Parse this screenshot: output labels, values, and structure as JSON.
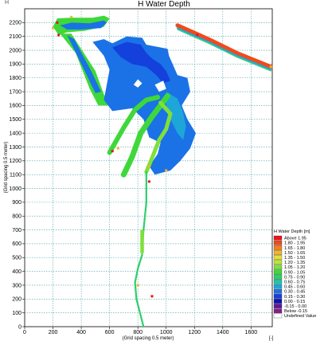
{
  "corner_label": "H",
  "chart_data": {
    "type": "heatmap",
    "title": "H Water Depth",
    "xlabel": "(Grid spacing 0.5 meter)",
    "ylabel": "(Grid spacing 0.5 meter)",
    "x_unit_label": "[-]",
    "xlim": [
      0,
      1750
    ],
    "ylim": [
      0,
      2300
    ],
    "x_ticks": [
      0,
      200,
      400,
      600,
      800,
      1000,
      1200,
      1400,
      1600
    ],
    "y_ticks": [
      0,
      100,
      200,
      300,
      400,
      500,
      600,
      700,
      800,
      900,
      1000,
      1100,
      1200,
      1300,
      1400,
      1500,
      1600,
      1700,
      1800,
      1900,
      2000,
      2100,
      2200
    ],
    "grid": true,
    "legend": {
      "title": "H Water Depth [m]",
      "position": "right",
      "entries": [
        {
          "label": "Above  1.95",
          "color": "#e8141c"
        },
        {
          "label": "1.80 - 1.95",
          "color": "#f04a1c"
        },
        {
          "label": "1.65 - 1.80",
          "color": "#f5801f"
        },
        {
          "label": "1.50 - 1.65",
          "color": "#f2b52a"
        },
        {
          "label": "1.35 - 1.50",
          "color": "#e6df3a"
        },
        {
          "label": "1.20 - 1.35",
          "color": "#b8e63a"
        },
        {
          "label": "1.05 - 1.20",
          "color": "#7fe03a"
        },
        {
          "label": "0.90 - 1.05",
          "color": "#3ed83a"
        },
        {
          "label": "0.75 - 0.90",
          "color": "#2ccf6a"
        },
        {
          "label": "0.60 - 0.75",
          "color": "#22c5a4"
        },
        {
          "label": "0.45 - 0.60",
          "color": "#1ea6d8"
        },
        {
          "label": "0.30 - 0.45",
          "color": "#1a72e6"
        },
        {
          "label": "0.15 - 0.30",
          "color": "#1440dc"
        },
        {
          "label": "0.00 - 0.15",
          "color": "#1010b4"
        },
        {
          "label": "-0.15 - 0.00",
          "color": "#5a1a9a"
        },
        {
          "label": "Below  -0.15",
          "color": "#8a1c8a"
        },
        {
          "label": "Undefined Value",
          "color": "#ffffff"
        }
      ]
    }
  }
}
